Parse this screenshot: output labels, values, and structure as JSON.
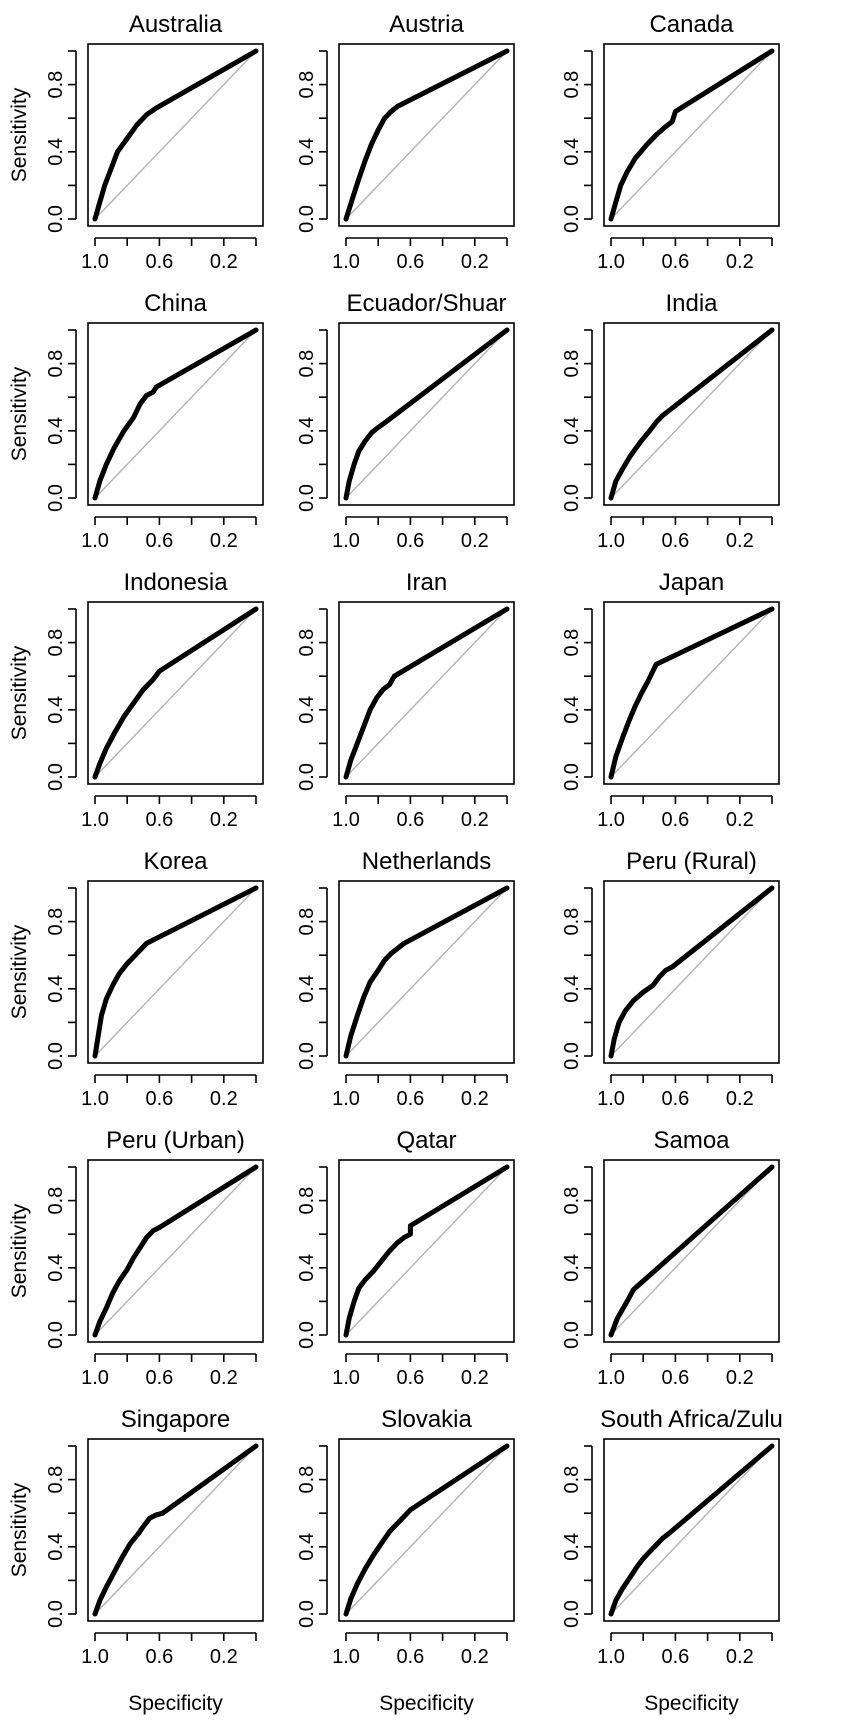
{
  "chart_data": [
    {
      "type": "line",
      "title": "Australia",
      "xlabel": "",
      "ylabel": "Sensitivity",
      "xlim": [
        1.0,
        0.0
      ],
      "ylim": [
        0,
        1
      ],
      "reversed_x": true,
      "x_ticks": [
        "1.0",
        "0.6",
        "0.2"
      ],
      "y_ticks": [
        "0.0",
        "0.4",
        "0.8"
      ],
      "grid": false,
      "series": [
        {
          "x": [
            1,
            0.97,
            0.94,
            0.9,
            0.86,
            0.8,
            0.74,
            0.68,
            0.62,
            0
          ],
          "y": [
            0,
            0.1,
            0.2,
            0.3,
            0.4,
            0.48,
            0.56,
            0.62,
            0.66,
            1
          ]
        }
      ],
      "reference_line": {
        "x": [
          1,
          0
        ],
        "y": [
          0,
          1
        ]
      }
    },
    {
      "type": "line",
      "title": "Austria",
      "xlabel": "",
      "ylabel": "",
      "xlim": [
        1.0,
        0.0
      ],
      "ylim": [
        0,
        1
      ],
      "reversed_x": true,
      "x_ticks": [
        "1.0",
        "0.6",
        "0.2"
      ],
      "y_ticks": [
        "0.0",
        "0.4",
        "0.8"
      ],
      "grid": false,
      "series": [
        {
          "x": [
            1,
            0.96,
            0.92,
            0.88,
            0.84,
            0.8,
            0.76,
            0.72,
            0.68,
            0
          ],
          "y": [
            0,
            0.12,
            0.24,
            0.35,
            0.45,
            0.53,
            0.6,
            0.64,
            0.67,
            1
          ]
        }
      ],
      "reference_line": {
        "x": [
          1,
          0
        ],
        "y": [
          0,
          1
        ]
      }
    },
    {
      "type": "line",
      "title": "Canada",
      "xlabel": "",
      "ylabel": "",
      "xlim": [
        1.0,
        0.0
      ],
      "ylim": [
        0,
        1
      ],
      "reversed_x": true,
      "x_ticks": [
        "1.0",
        "0.6",
        "0.2"
      ],
      "y_ticks": [
        "0.0",
        "0.4",
        "0.8"
      ],
      "grid": false,
      "series": [
        {
          "x": [
            1,
            0.97,
            0.94,
            0.9,
            0.85,
            0.78,
            0.72,
            0.66,
            0.62,
            0.6,
            0
          ],
          "y": [
            0,
            0.1,
            0.2,
            0.28,
            0.36,
            0.44,
            0.5,
            0.55,
            0.58,
            0.64,
            1
          ]
        }
      ],
      "reference_line": {
        "x": [
          1,
          0
        ],
        "y": [
          0,
          1
        ]
      }
    },
    {
      "type": "line",
      "title": "China",
      "xlabel": "",
      "ylabel": "Sensitivity",
      "xlim": [
        1.0,
        0.0
      ],
      "ylim": [
        0,
        1
      ],
      "reversed_x": true,
      "x_ticks": [
        "1.0",
        "0.6",
        "0.2"
      ],
      "y_ticks": [
        "0.0",
        "0.4",
        "0.8"
      ],
      "grid": false,
      "series": [
        {
          "x": [
            1,
            0.97,
            0.93,
            0.88,
            0.82,
            0.76,
            0.72,
            0.68,
            0.64,
            0.62,
            0
          ],
          "y": [
            0,
            0.1,
            0.2,
            0.3,
            0.4,
            0.48,
            0.56,
            0.61,
            0.63,
            0.66,
            1
          ]
        }
      ],
      "reference_line": {
        "x": [
          1,
          0
        ],
        "y": [
          0,
          1
        ]
      }
    },
    {
      "type": "line",
      "title": "Ecuador/Shuar",
      "xlabel": "",
      "ylabel": "",
      "xlim": [
        1.0,
        0.0
      ],
      "ylim": [
        0,
        1
      ],
      "reversed_x": true,
      "x_ticks": [
        "1.0",
        "0.6",
        "0.2"
      ],
      "y_ticks": [
        "0.0",
        "0.4",
        "0.8"
      ],
      "grid": false,
      "series": [
        {
          "x": [
            1,
            0.98,
            0.95,
            0.92,
            0.88,
            0.84,
            0.8,
            0.77,
            0
          ],
          "y": [
            0,
            0.1,
            0.2,
            0.28,
            0.34,
            0.39,
            0.42,
            0.44,
            1
          ]
        }
      ],
      "reference_line": {
        "x": [
          1,
          0
        ],
        "y": [
          0,
          1
        ]
      }
    },
    {
      "type": "line",
      "title": "India",
      "xlabel": "",
      "ylabel": "",
      "xlim": [
        1.0,
        0.0
      ],
      "ylim": [
        0,
        1
      ],
      "reversed_x": true,
      "x_ticks": [
        "1.0",
        "0.6",
        "0.2"
      ],
      "y_ticks": [
        "0.0",
        "0.4",
        "0.8"
      ],
      "grid": false,
      "series": [
        {
          "x": [
            1,
            0.97,
            0.93,
            0.88,
            0.82,
            0.76,
            0.72,
            0.68,
            0
          ],
          "y": [
            0,
            0.1,
            0.17,
            0.25,
            0.33,
            0.4,
            0.45,
            0.49,
            1
          ]
        }
      ],
      "reference_line": {
        "x": [
          1,
          0
        ],
        "y": [
          0,
          1
        ]
      }
    },
    {
      "type": "line",
      "title": "Indonesia",
      "xlabel": "",
      "ylabel": "Sensitivity",
      "xlim": [
        1.0,
        0.0
      ],
      "ylim": [
        0,
        1
      ],
      "reversed_x": true,
      "x_ticks": [
        "1.0",
        "0.6",
        "0.2"
      ],
      "y_ticks": [
        "0.0",
        "0.4",
        "0.8"
      ],
      "grid": false,
      "series": [
        {
          "x": [
            1,
            0.97,
            0.93,
            0.88,
            0.82,
            0.76,
            0.7,
            0.64,
            0.6,
            0
          ],
          "y": [
            0,
            0.08,
            0.17,
            0.26,
            0.36,
            0.44,
            0.52,
            0.58,
            0.63,
            1
          ]
        }
      ],
      "reference_line": {
        "x": [
          1,
          0
        ],
        "y": [
          0,
          1
        ]
      }
    },
    {
      "type": "line",
      "title": "Iran",
      "xlabel": "",
      "ylabel": "",
      "xlim": [
        1.0,
        0.0
      ],
      "ylim": [
        0,
        1
      ],
      "reversed_x": true,
      "x_ticks": [
        "1.0",
        "0.6",
        "0.2"
      ],
      "y_ticks": [
        "0.0",
        "0.4",
        "0.8"
      ],
      "grid": false,
      "series": [
        {
          "x": [
            1,
            0.97,
            0.93,
            0.89,
            0.85,
            0.81,
            0.77,
            0.73,
            0.7,
            0
          ],
          "y": [
            0,
            0.1,
            0.2,
            0.3,
            0.4,
            0.47,
            0.52,
            0.55,
            0.6,
            1
          ]
        }
      ],
      "reference_line": {
        "x": [
          1,
          0
        ],
        "y": [
          0,
          1
        ]
      }
    },
    {
      "type": "line",
      "title": "Japan",
      "xlabel": "",
      "ylabel": "",
      "xlim": [
        1.0,
        0.0
      ],
      "ylim": [
        0,
        1
      ],
      "reversed_x": true,
      "x_ticks": [
        "1.0",
        "0.6",
        "0.2"
      ],
      "y_ticks": [
        "0.0",
        "0.4",
        "0.8"
      ],
      "grid": false,
      "series": [
        {
          "x": [
            1,
            0.97,
            0.93,
            0.89,
            0.85,
            0.81,
            0.77,
            0.72,
            0
          ],
          "y": [
            0,
            0.12,
            0.23,
            0.33,
            0.42,
            0.5,
            0.57,
            0.67,
            1
          ]
        }
      ],
      "reference_line": {
        "x": [
          1,
          0
        ],
        "y": [
          0,
          1
        ]
      }
    },
    {
      "type": "line",
      "title": "Korea",
      "xlabel": "",
      "ylabel": "Sensitivity",
      "xlim": [
        1.0,
        0.0
      ],
      "ylim": [
        0,
        1
      ],
      "reversed_x": true,
      "x_ticks": [
        "1.0",
        "0.6",
        "0.2"
      ],
      "y_ticks": [
        "0.0",
        "0.4",
        "0.8"
      ],
      "grid": false,
      "series": [
        {
          "x": [
            1,
            0.98,
            0.96,
            0.93,
            0.89,
            0.85,
            0.8,
            0.75,
            0.71,
            0.68,
            0
          ],
          "y": [
            0,
            0.12,
            0.24,
            0.34,
            0.42,
            0.49,
            0.55,
            0.6,
            0.64,
            0.67,
            1
          ]
        }
      ],
      "reference_line": {
        "x": [
          1,
          0
        ],
        "y": [
          0,
          1
        ]
      }
    },
    {
      "type": "line",
      "title": "Netherlands",
      "xlabel": "",
      "ylabel": "",
      "xlim": [
        1.0,
        0.0
      ],
      "ylim": [
        0,
        1
      ],
      "reversed_x": true,
      "x_ticks": [
        "1.0",
        "0.6",
        "0.2"
      ],
      "y_ticks": [
        "0.0",
        "0.4",
        "0.8"
      ],
      "grid": false,
      "series": [
        {
          "x": [
            1,
            0.97,
            0.93,
            0.89,
            0.85,
            0.8,
            0.76,
            0.72,
            0.68,
            0.64,
            0
          ],
          "y": [
            0,
            0.12,
            0.24,
            0.35,
            0.44,
            0.51,
            0.57,
            0.61,
            0.64,
            0.67,
            1
          ]
        }
      ],
      "reference_line": {
        "x": [
          1,
          0
        ],
        "y": [
          0,
          1
        ]
      }
    },
    {
      "type": "line",
      "title": "Peru (Rural)",
      "xlabel": "",
      "ylabel": "",
      "xlim": [
        1.0,
        0.0
      ],
      "ylim": [
        0,
        1
      ],
      "reversed_x": true,
      "x_ticks": [
        "1.0",
        "0.6",
        "0.2"
      ],
      "y_ticks": [
        "0.0",
        "0.4",
        "0.8"
      ],
      "grid": false,
      "series": [
        {
          "x": [
            1,
            0.98,
            0.95,
            0.91,
            0.86,
            0.8,
            0.74,
            0.7,
            0.66,
            0.62,
            0
          ],
          "y": [
            0,
            0.1,
            0.2,
            0.27,
            0.33,
            0.38,
            0.42,
            0.47,
            0.51,
            0.53,
            1
          ]
        }
      ],
      "reference_line": {
        "x": [
          1,
          0
        ],
        "y": [
          0,
          1
        ]
      }
    },
    {
      "type": "line",
      "title": "Peru (Urban)",
      "xlabel": "",
      "ylabel": "Sensitivity",
      "xlim": [
        1.0,
        0.0
      ],
      "ylim": [
        0,
        1
      ],
      "reversed_x": true,
      "x_ticks": [
        "1.0",
        "0.6",
        "0.2"
      ],
      "y_ticks": [
        "0.0",
        "0.4",
        "0.8"
      ],
      "grid": false,
      "series": [
        {
          "x": [
            1,
            0.97,
            0.93,
            0.89,
            0.85,
            0.8,
            0.76,
            0.72,
            0.68,
            0.64,
            0.6,
            0
          ],
          "y": [
            0,
            0.08,
            0.16,
            0.25,
            0.32,
            0.39,
            0.46,
            0.52,
            0.58,
            0.62,
            0.64,
            1
          ]
        }
      ],
      "reference_line": {
        "x": [
          1,
          0
        ],
        "y": [
          0,
          1
        ]
      }
    },
    {
      "type": "line",
      "title": "Qatar",
      "xlabel": "",
      "ylabel": "",
      "xlim": [
        1.0,
        0.0
      ],
      "ylim": [
        0,
        1
      ],
      "reversed_x": true,
      "x_ticks": [
        "1.0",
        "0.6",
        "0.2"
      ],
      "y_ticks": [
        "0.0",
        "0.4",
        "0.8"
      ],
      "grid": false,
      "series": [
        {
          "x": [
            1,
            0.98,
            0.95,
            0.92,
            0.88,
            0.83,
            0.78,
            0.73,
            0.68,
            0.64,
            0.6,
            0.6,
            0
          ],
          "y": [
            0,
            0.1,
            0.2,
            0.28,
            0.33,
            0.38,
            0.44,
            0.5,
            0.55,
            0.58,
            0.6,
            0.65,
            1
          ]
        }
      ],
      "reference_line": {
        "x": [
          1,
          0
        ],
        "y": [
          0,
          1
        ]
      }
    },
    {
      "type": "line",
      "title": "Samoa",
      "xlabel": "",
      "ylabel": "",
      "xlim": [
        1.0,
        0.0
      ],
      "ylim": [
        0,
        1
      ],
      "reversed_x": true,
      "x_ticks": [
        "1.0",
        "0.6",
        "0.2"
      ],
      "y_ticks": [
        "0.0",
        "0.4",
        "0.8"
      ],
      "grid": false,
      "series": [
        {
          "x": [
            1,
            0.98,
            0.96,
            0.93,
            0.9,
            0.86,
            0
          ],
          "y": [
            0,
            0.05,
            0.1,
            0.15,
            0.2,
            0.27,
            1
          ]
        }
      ],
      "reference_line": {
        "x": [
          1,
          0
        ],
        "y": [
          0,
          1
        ]
      }
    },
    {
      "type": "line",
      "title": "Singapore",
      "xlabel": "Specificity",
      "ylabel": "Sensitivity",
      "xlim": [
        1.0,
        0.0
      ],
      "ylim": [
        0,
        1
      ],
      "reversed_x": true,
      "x_ticks": [
        "1.0",
        "0.6",
        "0.2"
      ],
      "y_ticks": [
        "0.0",
        "0.4",
        "0.8"
      ],
      "grid": false,
      "series": [
        {
          "x": [
            1,
            0.97,
            0.93,
            0.88,
            0.83,
            0.78,
            0.73,
            0.7,
            0.66,
            0.62,
            0.58,
            0
          ],
          "y": [
            0,
            0.08,
            0.16,
            0.25,
            0.34,
            0.42,
            0.48,
            0.52,
            0.57,
            0.59,
            0.6,
            1
          ]
        }
      ],
      "reference_line": {
        "x": [
          1,
          0
        ],
        "y": [
          0,
          1
        ]
      }
    },
    {
      "type": "line",
      "title": "Slovakia",
      "xlabel": "Specificity",
      "ylabel": "",
      "xlim": [
        1.0,
        0.0
      ],
      "ylim": [
        0,
        1
      ],
      "reversed_x": true,
      "x_ticks": [
        "1.0",
        "0.6",
        "0.2"
      ],
      "y_ticks": [
        "0.0",
        "0.4",
        "0.8"
      ],
      "grid": false,
      "series": [
        {
          "x": [
            1,
            0.97,
            0.93,
            0.88,
            0.83,
            0.78,
            0.73,
            0.68,
            0.64,
            0.6,
            0
          ],
          "y": [
            0,
            0.09,
            0.18,
            0.27,
            0.35,
            0.42,
            0.49,
            0.54,
            0.58,
            0.62,
            1
          ]
        }
      ],
      "reference_line": {
        "x": [
          1,
          0
        ],
        "y": [
          0,
          1
        ]
      }
    },
    {
      "type": "line",
      "title": "South Africa/Zulu",
      "xlabel": "Specificity",
      "ylabel": "",
      "xlim": [
        1.0,
        0.0
      ],
      "ylim": [
        0,
        1
      ],
      "reversed_x": true,
      "x_ticks": [
        "1.0",
        "0.6",
        "0.2"
      ],
      "y_ticks": [
        "0.0",
        "0.4",
        "0.8"
      ],
      "grid": false,
      "series": [
        {
          "x": [
            1,
            0.97,
            0.93,
            0.88,
            0.84,
            0.8,
            0.76,
            0.72,
            0.68,
            0.64,
            0
          ],
          "y": [
            0,
            0.08,
            0.15,
            0.22,
            0.28,
            0.33,
            0.37,
            0.41,
            0.45,
            0.48,
            1
          ]
        }
      ],
      "reference_line": {
        "x": [
          1,
          0
        ],
        "y": [
          0,
          1
        ]
      }
    }
  ],
  "style": {
    "curve_color": "#000000",
    "reference_color": "#b3b3b3",
    "axis_color": "#000000"
  }
}
